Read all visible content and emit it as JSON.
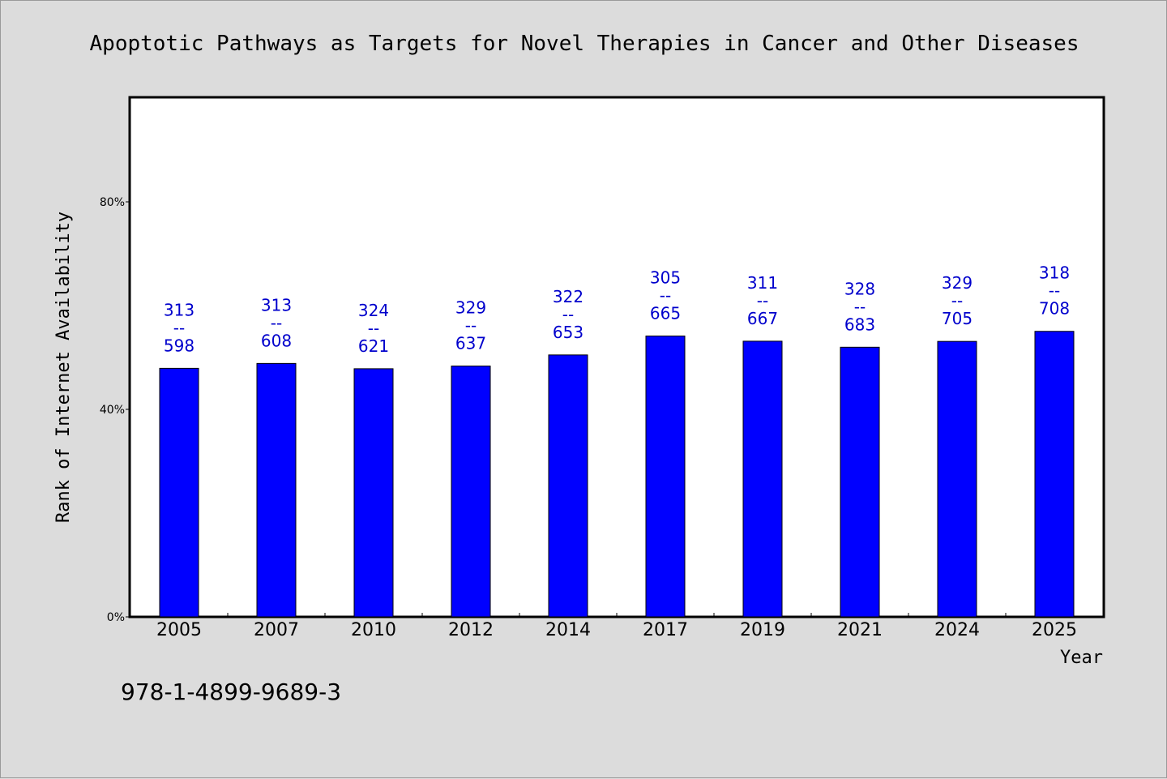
{
  "chart_data": {
    "type": "bar",
    "title": "Apoptotic Pathways as Targets for Novel Therapies in Cancer and Other Diseases",
    "xlabel": "Year",
    "ylabel": "Rank of Internet Availability",
    "categories": [
      "2005",
      "2007",
      "2010",
      "2012",
      "2014",
      "2017",
      "2019",
      "2021",
      "2024",
      "2025"
    ],
    "values": [
      0.4791,
      0.4885,
      0.4783,
      0.4835,
      0.5049,
      0.5414,
      0.5314,
      0.5198,
      0.531,
      0.5504
    ],
    "data_labels": [
      [
        "313",
        "--",
        "598"
      ],
      [
        "313",
        "--",
        "608"
      ],
      [
        "324",
        "--",
        "621"
      ],
      [
        "329",
        "--",
        "637"
      ],
      [
        "322",
        "--",
        "653"
      ],
      [
        "305",
        "--",
        "665"
      ],
      [
        "311",
        "--",
        "667"
      ],
      [
        "328",
        "--",
        "683"
      ],
      [
        "329",
        "--",
        "705"
      ],
      [
        "318",
        "--",
        "708"
      ]
    ],
    "yticks": [
      0,
      0.4,
      0.8
    ],
    "ytick_labels": [
      "0%",
      "40%",
      "80%"
    ],
    "ylim": [
      0,
      1.0
    ],
    "grid": false,
    "legend": "none",
    "bar_color": "#0000ff",
    "label_color": "#0000cc",
    "plot_background": "#ffffff",
    "page_background": "#dcdcdc"
  },
  "footer": {
    "isbn": "978-1-4899-9689-3"
  }
}
